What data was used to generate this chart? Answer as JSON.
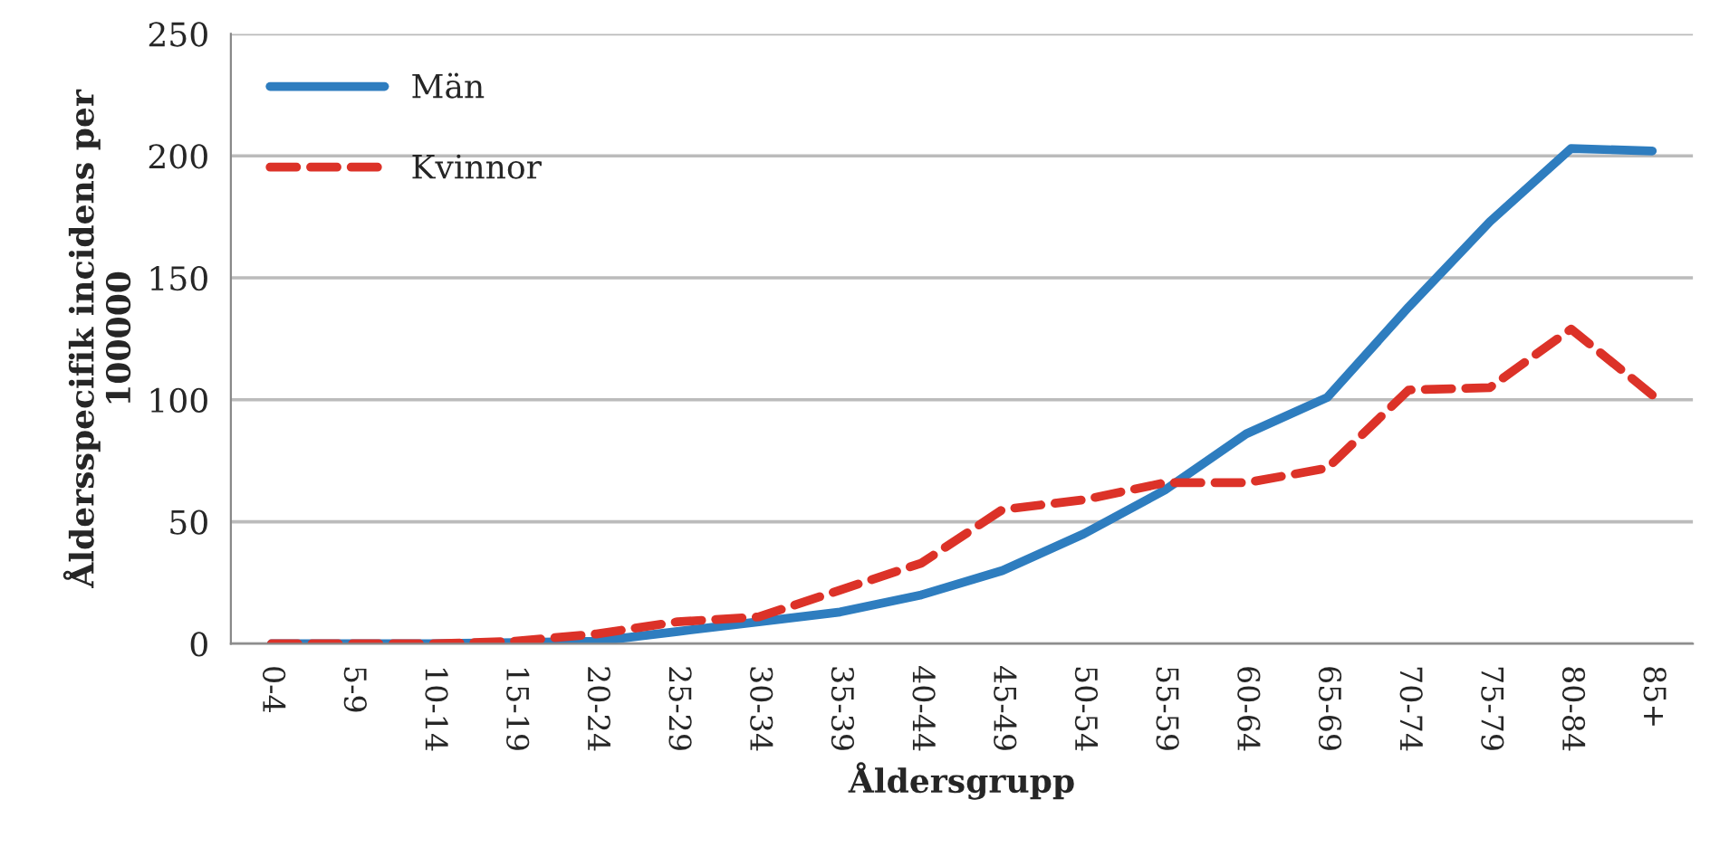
{
  "chart_data": {
    "type": "line",
    "xlabel": "Åldersgrupp",
    "ylabel": "Åldersspecifik incidens per\n100000",
    "categories": [
      "0-4",
      "5-9",
      "10-14",
      "15-19",
      "20-24",
      "25-29",
      "30-34",
      "35-39",
      "40-44",
      "45-49",
      "50-54",
      "55-59",
      "60-64",
      "65-69",
      "70-74",
      "75-79",
      "80-84",
      "85+"
    ],
    "series": [
      {
        "name": "Män",
        "color": "#2e7dbf",
        "line_style": "solid",
        "values": [
          0,
          0,
          0,
          0.5,
          1,
          5,
          9,
          13,
          20,
          30,
          45,
          63,
          86,
          101,
          138,
          173,
          203,
          202
        ]
      },
      {
        "name": "Kvinnor",
        "color": "#dc3228",
        "line_style": "dashed",
        "values": [
          0,
          0,
          0,
          1,
          4,
          9,
          11,
          22,
          33,
          55,
          59,
          66,
          66,
          72,
          104,
          105,
          129,
          102
        ]
      }
    ],
    "ylim": [
      0,
      250
    ],
    "yticks": [
      0,
      50,
      100,
      150,
      200,
      250
    ],
    "grid": "y",
    "legend": "top left"
  }
}
